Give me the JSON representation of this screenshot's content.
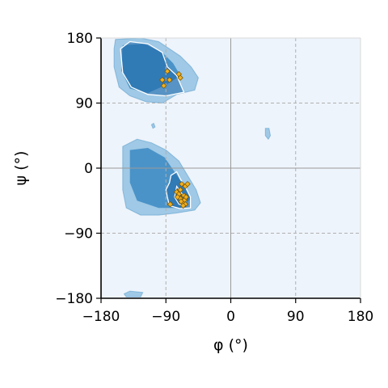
{
  "chart_data": {
    "type": "scatter",
    "title": "",
    "xlabel": "φ (°)",
    "ylabel": "ψ (°)",
    "xlim": [
      -180,
      180
    ],
    "ylim": [
      -180,
      180
    ],
    "xticks": [
      -180,
      -90,
      0,
      90,
      180
    ],
    "yticks": [
      -180,
      -90,
      0,
      90,
      180
    ],
    "xtick_labels": [
      "−180",
      "−90",
      "0",
      "90",
      "180"
    ],
    "ytick_labels": [
      "−180",
      "−90",
      "0",
      "90",
      "180"
    ],
    "grid": true,
    "background_color": "#eef4fb",
    "colors": {
      "density_low": "#9fc9e6",
      "density_mid": "#4a93c8",
      "density_high": "#1c66a8",
      "contour": "#ffffff",
      "points": "#f0b020",
      "point_edge": "#7a5200",
      "grid": "#b0b0b0",
      "zero_line": "#999999"
    },
    "density_regions": [
      {
        "name": "beta-sheet",
        "outline": [
          [
            -160,
            178
          ],
          [
            -125,
            180
          ],
          [
            -100,
            175
          ],
          [
            -85,
            165
          ],
          [
            -70,
            155
          ],
          [
            -55,
            140
          ],
          [
            -45,
            125
          ],
          [
            -50,
            108
          ],
          [
            -75,
            102
          ],
          [
            -95,
            90
          ],
          [
            -118,
            92
          ],
          [
            -140,
            100
          ],
          [
            -155,
            112
          ],
          [
            -162,
            140
          ],
          [
            -162,
            165
          ]
        ],
        "core": [
          [
            -150,
            170
          ],
          [
            -120,
            172
          ],
          [
            -95,
            160
          ],
          [
            -80,
            145
          ],
          [
            -70,
            128
          ],
          [
            -90,
            115
          ],
          [
            -115,
            104
          ],
          [
            -140,
            110
          ],
          [
            -152,
            135
          ]
        ],
        "contour": [
          [
            -153,
            165
          ],
          [
            -140,
            175
          ],
          [
            -115,
            172
          ],
          [
            -95,
            160
          ],
          [
            -88,
            140
          ],
          [
            -75,
            128
          ],
          [
            -65,
            105
          ],
          [
            -90,
            100
          ],
          [
            -115,
            102
          ],
          [
            -138,
            112
          ],
          [
            -150,
            132
          ]
        ]
      },
      {
        "name": "alpha-helix",
        "outline": [
          [
            -150,
            30
          ],
          [
            -130,
            40
          ],
          [
            -110,
            35
          ],
          [
            -90,
            25
          ],
          [
            -72,
            10
          ],
          [
            -60,
            -10
          ],
          [
            -48,
            -30
          ],
          [
            -42,
            -48
          ],
          [
            -50,
            -58
          ],
          [
            -75,
            -62
          ],
          [
            -100,
            -65
          ],
          [
            -125,
            -65
          ],
          [
            -145,
            -55
          ],
          [
            -150,
            -30
          ],
          [
            -150,
            10
          ]
        ],
        "core": [
          [
            -140,
            25
          ],
          [
            -115,
            28
          ],
          [
            -92,
            15
          ],
          [
            -78,
            -5
          ],
          [
            -65,
            -25
          ],
          [
            -55,
            -42
          ],
          [
            -70,
            -55
          ],
          [
            -100,
            -55
          ],
          [
            -130,
            -45
          ],
          [
            -140,
            -20
          ]
        ],
        "contour": [
          [
            -83,
            -10
          ],
          [
            -75,
            -5
          ],
          [
            -70,
            -15
          ],
          [
            -62,
            -28
          ],
          [
            -56,
            -40
          ],
          [
            -56,
            -55
          ],
          [
            -70,
            -56
          ],
          [
            -85,
            -52
          ],
          [
            -88,
            -40
          ],
          [
            -90,
            -30
          ],
          [
            -85,
            -20
          ]
        ],
        "inner_contour": [
          [
            -75,
            -25
          ],
          [
            -68,
            -35
          ],
          [
            -62,
            -45
          ],
          [
            -64,
            -52
          ],
          [
            -72,
            -50
          ],
          [
            -78,
            -40
          ]
        ]
      },
      {
        "name": "left-handed-speck",
        "outline": [
          [
            48,
            55
          ],
          [
            53,
            55
          ],
          [
            55,
            45
          ],
          [
            52,
            40
          ],
          [
            48,
            45
          ]
        ],
        "core": [],
        "contour": []
      },
      {
        "name": "bottom-speck",
        "outline": [
          [
            -145,
            -178
          ],
          [
            -125,
            -178
          ],
          [
            -122,
            -172
          ],
          [
            -140,
            -170
          ],
          [
            -148,
            -174
          ]
        ],
        "core": [],
        "contour": []
      },
      {
        "name": "minor-speck",
        "outline": [
          [
            -110,
            60
          ],
          [
            -107,
            62
          ],
          [
            -105,
            57
          ],
          [
            -108,
            55
          ]
        ],
        "core": [],
        "contour": []
      }
    ],
    "points": [
      {
        "x": -88,
        "y": 134
      },
      {
        "x": -95,
        "y": 122
      },
      {
        "x": -85,
        "y": 122
      },
      {
        "x": -72,
        "y": 130
      },
      {
        "x": -70,
        "y": 125
      },
      {
        "x": -93,
        "y": 114
      },
      {
        "x": -68,
        "y": -22
      },
      {
        "x": -63,
        "y": -25
      },
      {
        "x": -60,
        "y": -22
      },
      {
        "x": -75,
        "y": -33
      },
      {
        "x": -70,
        "y": -30
      },
      {
        "x": -72,
        "y": -36
      },
      {
        "x": -65,
        "y": -38
      },
      {
        "x": -70,
        "y": -42
      },
      {
        "x": -64,
        "y": -44
      },
      {
        "x": -62,
        "y": -40
      },
      {
        "x": -67,
        "y": -48
      },
      {
        "x": -63,
        "y": -50
      },
      {
        "x": -69,
        "y": -46
      },
      {
        "x": -66,
        "y": -52
      },
      {
        "x": -84,
        "y": -50
      },
      {
        "x": -74,
        "y": -40
      }
    ]
  }
}
